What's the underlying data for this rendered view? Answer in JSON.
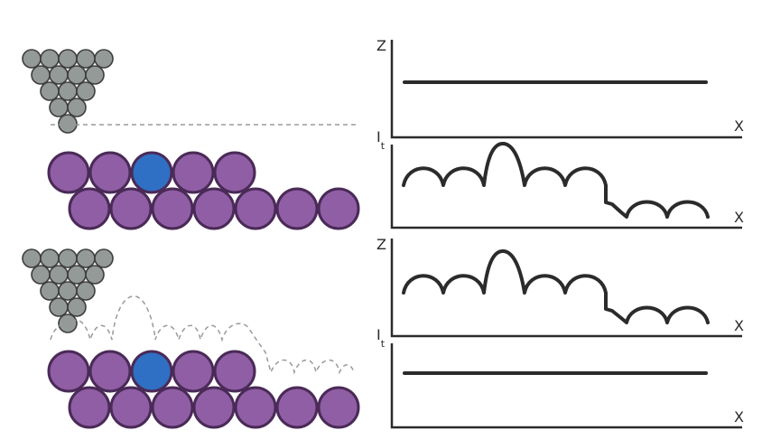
{
  "colors": {
    "tip_atom": "#949a98",
    "surface_atom": "#8f5ea4",
    "adatom": "#2f6fc4",
    "adatom_stroke": "#1a3a80",
    "axis": "#2b2b2b",
    "dashed_path": "#9a9a9a"
  },
  "top_scenario": {
    "name": "constant-height",
    "graph_z": {
      "y_label": "Z",
      "x_label": "X",
      "trace": "flat"
    },
    "graph_i": {
      "y_label": "I",
      "y_subscript": "t",
      "x_label": "X",
      "trace": "bumpy"
    }
  },
  "bottom_scenario": {
    "name": "constant-current",
    "graph_z": {
      "y_label": "Z",
      "x_label": "X",
      "trace": "bumpy"
    },
    "graph_i": {
      "y_label": "I",
      "y_subscript": "t",
      "x_label": "X",
      "trace": "flat"
    }
  }
}
